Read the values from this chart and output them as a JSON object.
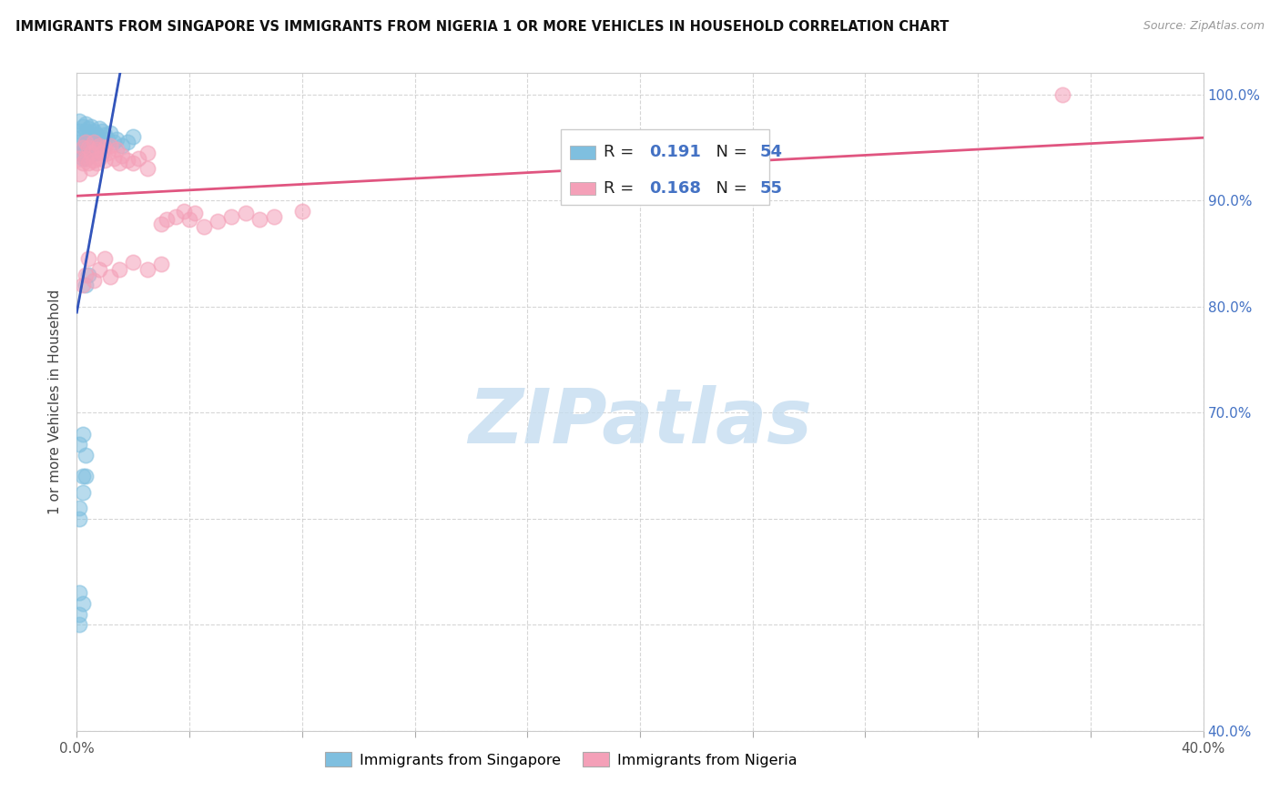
{
  "title": "IMMIGRANTS FROM SINGAPORE VS IMMIGRANTS FROM NIGERIA 1 OR MORE VEHICLES IN HOUSEHOLD CORRELATION CHART",
  "source": "Source: ZipAtlas.com",
  "ylabel": "1 or more Vehicles in Household",
  "xlim": [
    0.0,
    0.4
  ],
  "ylim": [
    0.4,
    1.02
  ],
  "xticks": [
    0.0,
    0.04,
    0.08,
    0.12,
    0.16,
    0.2,
    0.24,
    0.28,
    0.32,
    0.36,
    0.4
  ],
  "xticklabels": [
    "0.0%",
    "",
    "",
    "",
    "",
    "",
    "",
    "",
    "",
    "",
    "40.0%"
  ],
  "yticks": [
    0.4,
    0.5,
    0.6,
    0.7,
    0.8,
    0.9,
    1.0
  ],
  "yticklabels_right": [
    "40.0%",
    "",
    "",
    "70.0%",
    "80.0%",
    "90.0%",
    "100.0%"
  ],
  "singapore_color": "#7fbfdf",
  "nigeria_color": "#f4a0b8",
  "trend_blue": "#3355bb",
  "trend_pink": "#e05580",
  "watermark": "ZIPatlas",
  "watermark_color": "#c5ddf0",
  "legend_label_singapore": "Immigrants from Singapore",
  "legend_label_nigeria": "Immigrants from Nigeria",
  "sg_x": [
    0.001,
    0.001,
    0.001,
    0.001,
    0.002,
    0.002,
    0.002,
    0.002,
    0.003,
    0.003,
    0.003,
    0.003,
    0.003,
    0.004,
    0.004,
    0.004,
    0.004,
    0.005,
    0.005,
    0.005,
    0.005,
    0.006,
    0.006,
    0.006,
    0.007,
    0.007,
    0.007,
    0.008,
    0.008,
    0.009,
    0.009,
    0.01,
    0.01,
    0.011,
    0.012,
    0.013,
    0.014,
    0.016,
    0.018,
    0.02,
    0.001,
    0.002,
    0.003,
    0.003,
    0.004,
    0.001,
    0.001,
    0.002,
    0.002,
    0.003,
    0.001,
    0.001,
    0.002,
    0.001
  ],
  "sg_y": [
    0.975,
    0.965,
    0.955,
    0.945,
    0.97,
    0.96,
    0.95,
    0.94,
    0.972,
    0.965,
    0.955,
    0.948,
    0.94,
    0.968,
    0.958,
    0.95,
    0.942,
    0.97,
    0.96,
    0.952,
    0.944,
    0.965,
    0.958,
    0.948,
    0.962,
    0.954,
    0.945,
    0.968,
    0.958,
    0.965,
    0.955,
    0.962,
    0.952,
    0.958,
    0.964,
    0.955,
    0.958,
    0.952,
    0.955,
    0.96,
    0.67,
    0.68,
    0.66,
    0.82,
    0.83,
    0.6,
    0.61,
    0.625,
    0.64,
    0.64,
    0.5,
    0.51,
    0.52,
    0.53
  ],
  "ng_x": [
    0.001,
    0.001,
    0.002,
    0.002,
    0.003,
    0.003,
    0.004,
    0.004,
    0.005,
    0.005,
    0.006,
    0.006,
    0.007,
    0.007,
    0.008,
    0.008,
    0.009,
    0.01,
    0.01,
    0.011,
    0.012,
    0.013,
    0.014,
    0.015,
    0.016,
    0.018,
    0.02,
    0.022,
    0.025,
    0.025,
    0.03,
    0.032,
    0.035,
    0.038,
    0.04,
    0.042,
    0.045,
    0.05,
    0.055,
    0.06,
    0.065,
    0.07,
    0.08,
    0.35,
    0.002,
    0.003,
    0.004,
    0.006,
    0.008,
    0.01,
    0.012,
    0.015,
    0.02,
    0.025,
    0.03
  ],
  "ng_y": [
    0.94,
    0.925,
    0.95,
    0.935,
    0.955,
    0.94,
    0.95,
    0.935,
    0.945,
    0.93,
    0.955,
    0.938,
    0.948,
    0.935,
    0.952,
    0.94,
    0.945,
    0.95,
    0.938,
    0.945,
    0.952,
    0.94,
    0.948,
    0.935,
    0.942,
    0.938,
    0.935,
    0.94,
    0.945,
    0.93,
    0.878,
    0.882,
    0.885,
    0.89,
    0.882,
    0.888,
    0.875,
    0.88,
    0.885,
    0.888,
    0.882,
    0.885,
    0.89,
    1.0,
    0.82,
    0.83,
    0.845,
    0.825,
    0.835,
    0.845,
    0.828,
    0.835,
    0.842,
    0.835,
    0.84
  ]
}
